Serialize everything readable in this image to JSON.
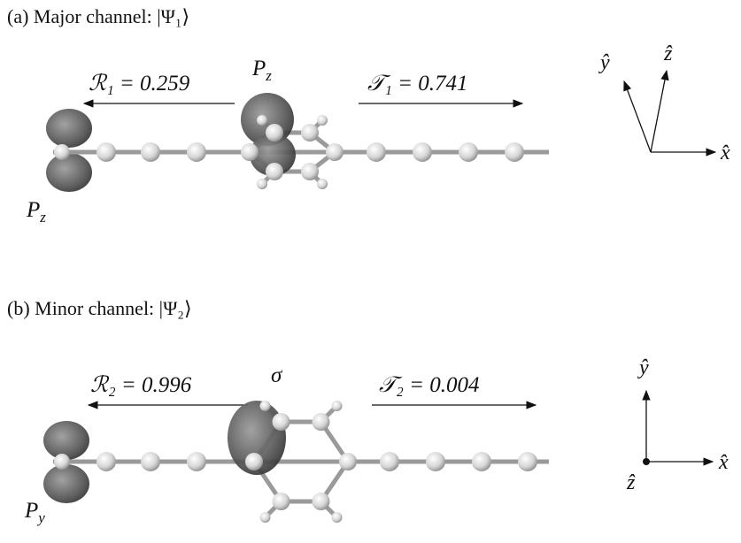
{
  "panels": [
    {
      "caption": "(a) Major channel: |Ψ₁⟩",
      "reflection": "ℛ₁ = 0.259",
      "transmission": "𝒯₁ = 0.741",
      "orbital_labels": [
        {
          "base": "P",
          "sub": "z"
        },
        {
          "base": "P",
          "sub": "z"
        }
      ],
      "axes": [
        "ŷ",
        "ẑ",
        "x̂"
      ]
    },
    {
      "caption": "(b) Minor channel: |Ψ₂⟩",
      "reflection": "ℛ₂ = 0.996",
      "transmission": "𝒯₂ = 0.004",
      "orbital_labels": [
        {
          "base": "σ"
        },
        {
          "base": "P",
          "sub": "y"
        }
      ],
      "axes": [
        "ŷ",
        "ẑ",
        "x̂"
      ]
    }
  ]
}
